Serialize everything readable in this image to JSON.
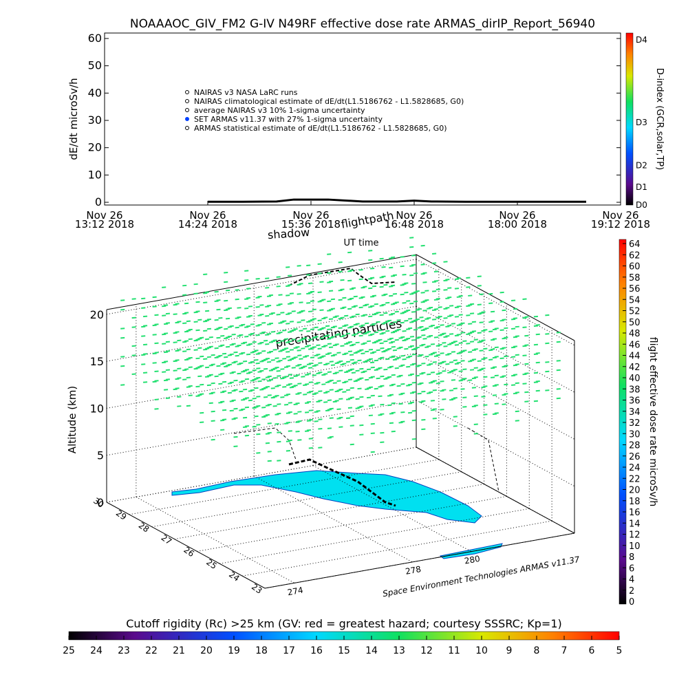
{
  "title": "NOAAAOC_GIV_FM2 G-IV    N49RF  effective dose rate ARMAS_dirIP_Report_56940",
  "dose_panel": {
    "type": "line",
    "ylabel": "dE/dt microSv/h",
    "xlabel": "UT time",
    "xlim": [
      "2018-11-26T13:12",
      "2018-11-26T19:12"
    ],
    "xticks": [
      {
        "value": "2018-11-26T13:12",
        "label": "Nov 26\n13:12 2018"
      },
      {
        "value": "2018-11-26T14:24",
        "label": "Nov 26\n14:24 2018"
      },
      {
        "value": "2018-11-26T15:36",
        "label": "Nov 26\n15:36 2018"
      },
      {
        "value": "2018-11-26T16:48",
        "label": "Nov 26\n16:48 2018"
      },
      {
        "value": "2018-11-26T18:00",
        "label": "Nov 26\n18:00 2018"
      },
      {
        "value": "2018-11-26T19:12",
        "label": "Nov 26\n19:12 2018"
      }
    ],
    "ylim": [
      -1,
      62
    ],
    "yticks": [
      0,
      10,
      20,
      30,
      40,
      50,
      60
    ],
    "legend": [
      "NAIRAS v3 NASA LaRC runs",
      "NAIRAS climatological estimate of dE/dt(L1.5186762 - L1.5828685, G0)",
      "average NAIRAS v3 10% 1-sigma uncertainty",
      "SET ARMAS v11.37 with 27% 1-sigma uncertainty",
      "ARMAS statistical estimate of dE/dt(L1.5186762 - L1.5828685, G0)"
    ],
    "series": [
      {
        "color": "#000000",
        "x": [
          "2018-11-26T14:24",
          "2018-11-26T14:48",
          "2018-11-26T15:12",
          "2018-11-26T15:24",
          "2018-11-26T15:48",
          "2018-11-26T16:12",
          "2018-11-26T16:36",
          "2018-11-26T16:48",
          "2018-11-26T17:00",
          "2018-11-26T17:24",
          "2018-11-26T18:00",
          "2018-11-26T18:24",
          "2018-11-26T18:48"
        ],
        "values": [
          0.2,
          0.2,
          0.3,
          1,
          1,
          0.3,
          0.3,
          0.6,
          0.3,
          0.2,
          0.2,
          0.2,
          0.2
        ]
      }
    ]
  },
  "dindex": {
    "label": "D-index (GCR,solar,TP)",
    "ticks": [
      "D0",
      "D1",
      "D2",
      "D3",
      "D4"
    ]
  },
  "map3d": {
    "zlabel": "Altitude (km)",
    "zlim": [
      0,
      20.5
    ],
    "zticks": [
      0,
      5,
      10,
      15,
      20
    ],
    "latlim": [
      23,
      30
    ],
    "latticks": [
      23,
      24,
      25,
      26,
      27,
      28,
      29,
      30
    ],
    "lonlim": [
      273,
      283.5
    ],
    "lonticks": [
      274,
      278,
      280
    ],
    "annotations": [
      "flightpath",
      "shadow",
      "precipitating particles",
      "Space Environment Technologies ARMAS v11.37"
    ]
  },
  "dose_colorbar": {
    "label": "flight effective dose rate microSv/h",
    "lim": [
      0,
      64
    ],
    "ticks": [
      0,
      2,
      4,
      6,
      8,
      10,
      12,
      14,
      16,
      18,
      20,
      22,
      24,
      26,
      28,
      30,
      32,
      34,
      36,
      38,
      40,
      42,
      44,
      46,
      48,
      50,
      52,
      54,
      56,
      58,
      60,
      62,
      64
    ]
  },
  "rigidity_colorbar": {
    "label": "Cutoff rigidity (Rc) >25 km (GV: red = greatest hazard; courtesy SSSRC; Kp=1)",
    "lim": [
      25,
      5
    ],
    "ticks": [
      25,
      24,
      23,
      22,
      21,
      20,
      19,
      18,
      17,
      16,
      15,
      14,
      13,
      12,
      11,
      10,
      9,
      8,
      7,
      6,
      5
    ]
  }
}
